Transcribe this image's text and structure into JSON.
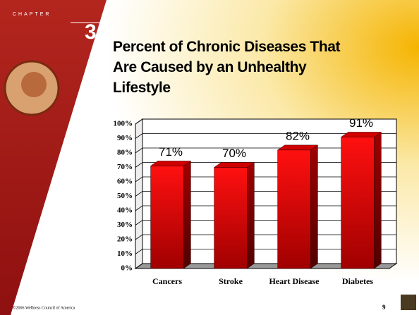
{
  "slide": {
    "chapter_label": "CHAPTER",
    "chapter_number": "3",
    "footer": "©2006 Wellness Council of America",
    "page_number": "9"
  },
  "chart_data": {
    "type": "bar3d",
    "title": "Percent of Chronic Diseases That Are Caused by an Unhealthy Lifestyle",
    "categories": [
      "Cancers",
      "Stroke",
      "Heart Disease",
      "Diabetes"
    ],
    "values": [
      71,
      70,
      82,
      91
    ],
    "value_labels": [
      "71%",
      "70%",
      "82%",
      "91%"
    ],
    "color": "#e00000",
    "ylim": [
      0,
      100
    ],
    "yticks": [
      {
        "value": 0,
        "label": "0%"
      },
      {
        "value": 10,
        "label": "10%"
      },
      {
        "value": 20,
        "label": "20%"
      },
      {
        "value": 30,
        "label": "30%"
      },
      {
        "value": 40,
        "label": "40%"
      },
      {
        "value": 50,
        "label": "50%"
      },
      {
        "value": 60,
        "label": "60%"
      },
      {
        "value": 70,
        "label": "70%"
      },
      {
        "value": 80,
        "label": "80%"
      },
      {
        "value": 90,
        "label": "90%"
      },
      {
        "value": 100,
        "label": "100%"
      }
    ],
    "grid": true
  }
}
